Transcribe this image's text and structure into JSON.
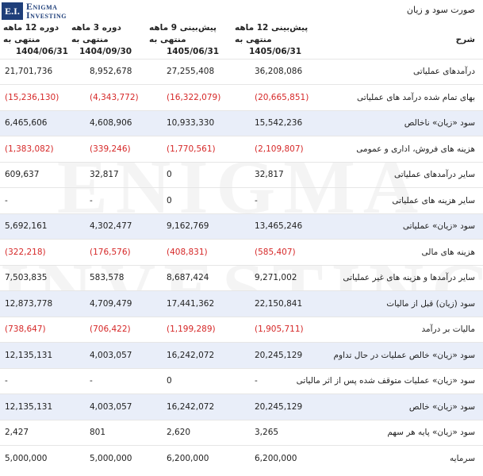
{
  "logo": {
    "mark": "E.I.",
    "line1": "Enigma",
    "line2": "Investing"
  },
  "watermark": {
    "line1": "ENIGMA",
    "line2": "INVESTING"
  },
  "title": "صورت سود و زیان",
  "columns": {
    "label": "شرح",
    "c1": {
      "line1": "پیش‌بینی 12 ماهه منتهی به",
      "line2": "1405/06/31"
    },
    "c2": {
      "line1": "پیش‌بینی 9 ماهه منتهی به",
      "line2": "1405/06/31"
    },
    "c3": {
      "line1": "دوره 3 ماهه منتهی به",
      "line2": "1404/09/30"
    },
    "c4": {
      "line1": "دوره 12 ماهه منتهی به",
      "line2": "1404/06/31"
    }
  },
  "rows": [
    {
      "label": "درآمدهای عملیاتی",
      "c1": "36,208,086",
      "c2": "27,255,408",
      "c3": "8,952,678",
      "c4": "21,701,736"
    },
    {
      "label": "بهای تمام شده درآمد های عملیاتی",
      "c1": "(20,665,851)",
      "c2": "(16,322,079)",
      "c3": "(4,343,772)",
      "c4": "(15,236,130)"
    },
    {
      "label": "سود «زیان» ناخالص",
      "c1": "15,542,236",
      "c2": "10,933,330",
      "c3": "4,608,906",
      "c4": "6,465,606"
    },
    {
      "label": "هزینه های فروش، اداری و عمومی",
      "c1": "(2,109,807)",
      "c2": "(1,770,561)",
      "c3": "(339,246)",
      "c4": "(1,383,082)"
    },
    {
      "label": "سایر درآمدهای عملیاتی",
      "c1": "32,817",
      "c2": "0",
      "c3": "32,817",
      "c4": "609,637"
    },
    {
      "label": "سایر هزینه های عملیاتی",
      "c1": "-",
      "c2": "0",
      "c3": "-",
      "c4": "-"
    },
    {
      "label": "سود «زیان» عملیاتی",
      "c1": "13,465,246",
      "c2": "9,162,769",
      "c3": "4,302,477",
      "c4": "5,692,161"
    },
    {
      "label": "هزینه های مالی",
      "c1": "(585,407)",
      "c2": "(408,831)",
      "c3": "(176,576)",
      "c4": "(322,218)"
    },
    {
      "label": "سایر درآمدها و هزینه های غیر عملیاتی",
      "c1": "9,271,002",
      "c2": "8,687,424",
      "c3": "583,578",
      "c4": "7,503,835"
    },
    {
      "label": "سود (زیان) قبل از مالیات",
      "c1": "22,150,841",
      "c2": "17,441,362",
      "c3": "4,709,479",
      "c4": "12,873,778"
    },
    {
      "label": "مالیات بر درآمد",
      "c1": "(1,905,711)",
      "c2": "(1,199,289)",
      "c3": "(706,422)",
      "c4": "(738,647)"
    },
    {
      "label": "سود «زیان» خالص عملیات در حال تداوم",
      "c1": "20,245,129",
      "c2": "16,242,072",
      "c3": "4,003,057",
      "c4": "12,135,131"
    },
    {
      "label": "سود «زیان» عملیات متوقف شده پس از اثر مالیاتی",
      "c1": "-",
      "c2": "0",
      "c3": "-",
      "c4": "-"
    },
    {
      "label": "سود «زیان» خالص",
      "c1": "20,245,129",
      "c2": "16,242,072",
      "c3": "4,003,057",
      "c4": "12,135,131"
    },
    {
      "label": "سود «زیان» پایه هر سهم",
      "c1": "3,265",
      "c2": "2,620",
      "c3": "801",
      "c4": "2,427"
    },
    {
      "label": "سرمایه",
      "c1": "6,200,000",
      "c2": "6,200,000",
      "c3": "5,000,000",
      "c4": "5,000,000"
    }
  ],
  "highlight_color": "#e9eef9",
  "negative_color": "#d62828",
  "brand_color": "#1f3f7a"
}
